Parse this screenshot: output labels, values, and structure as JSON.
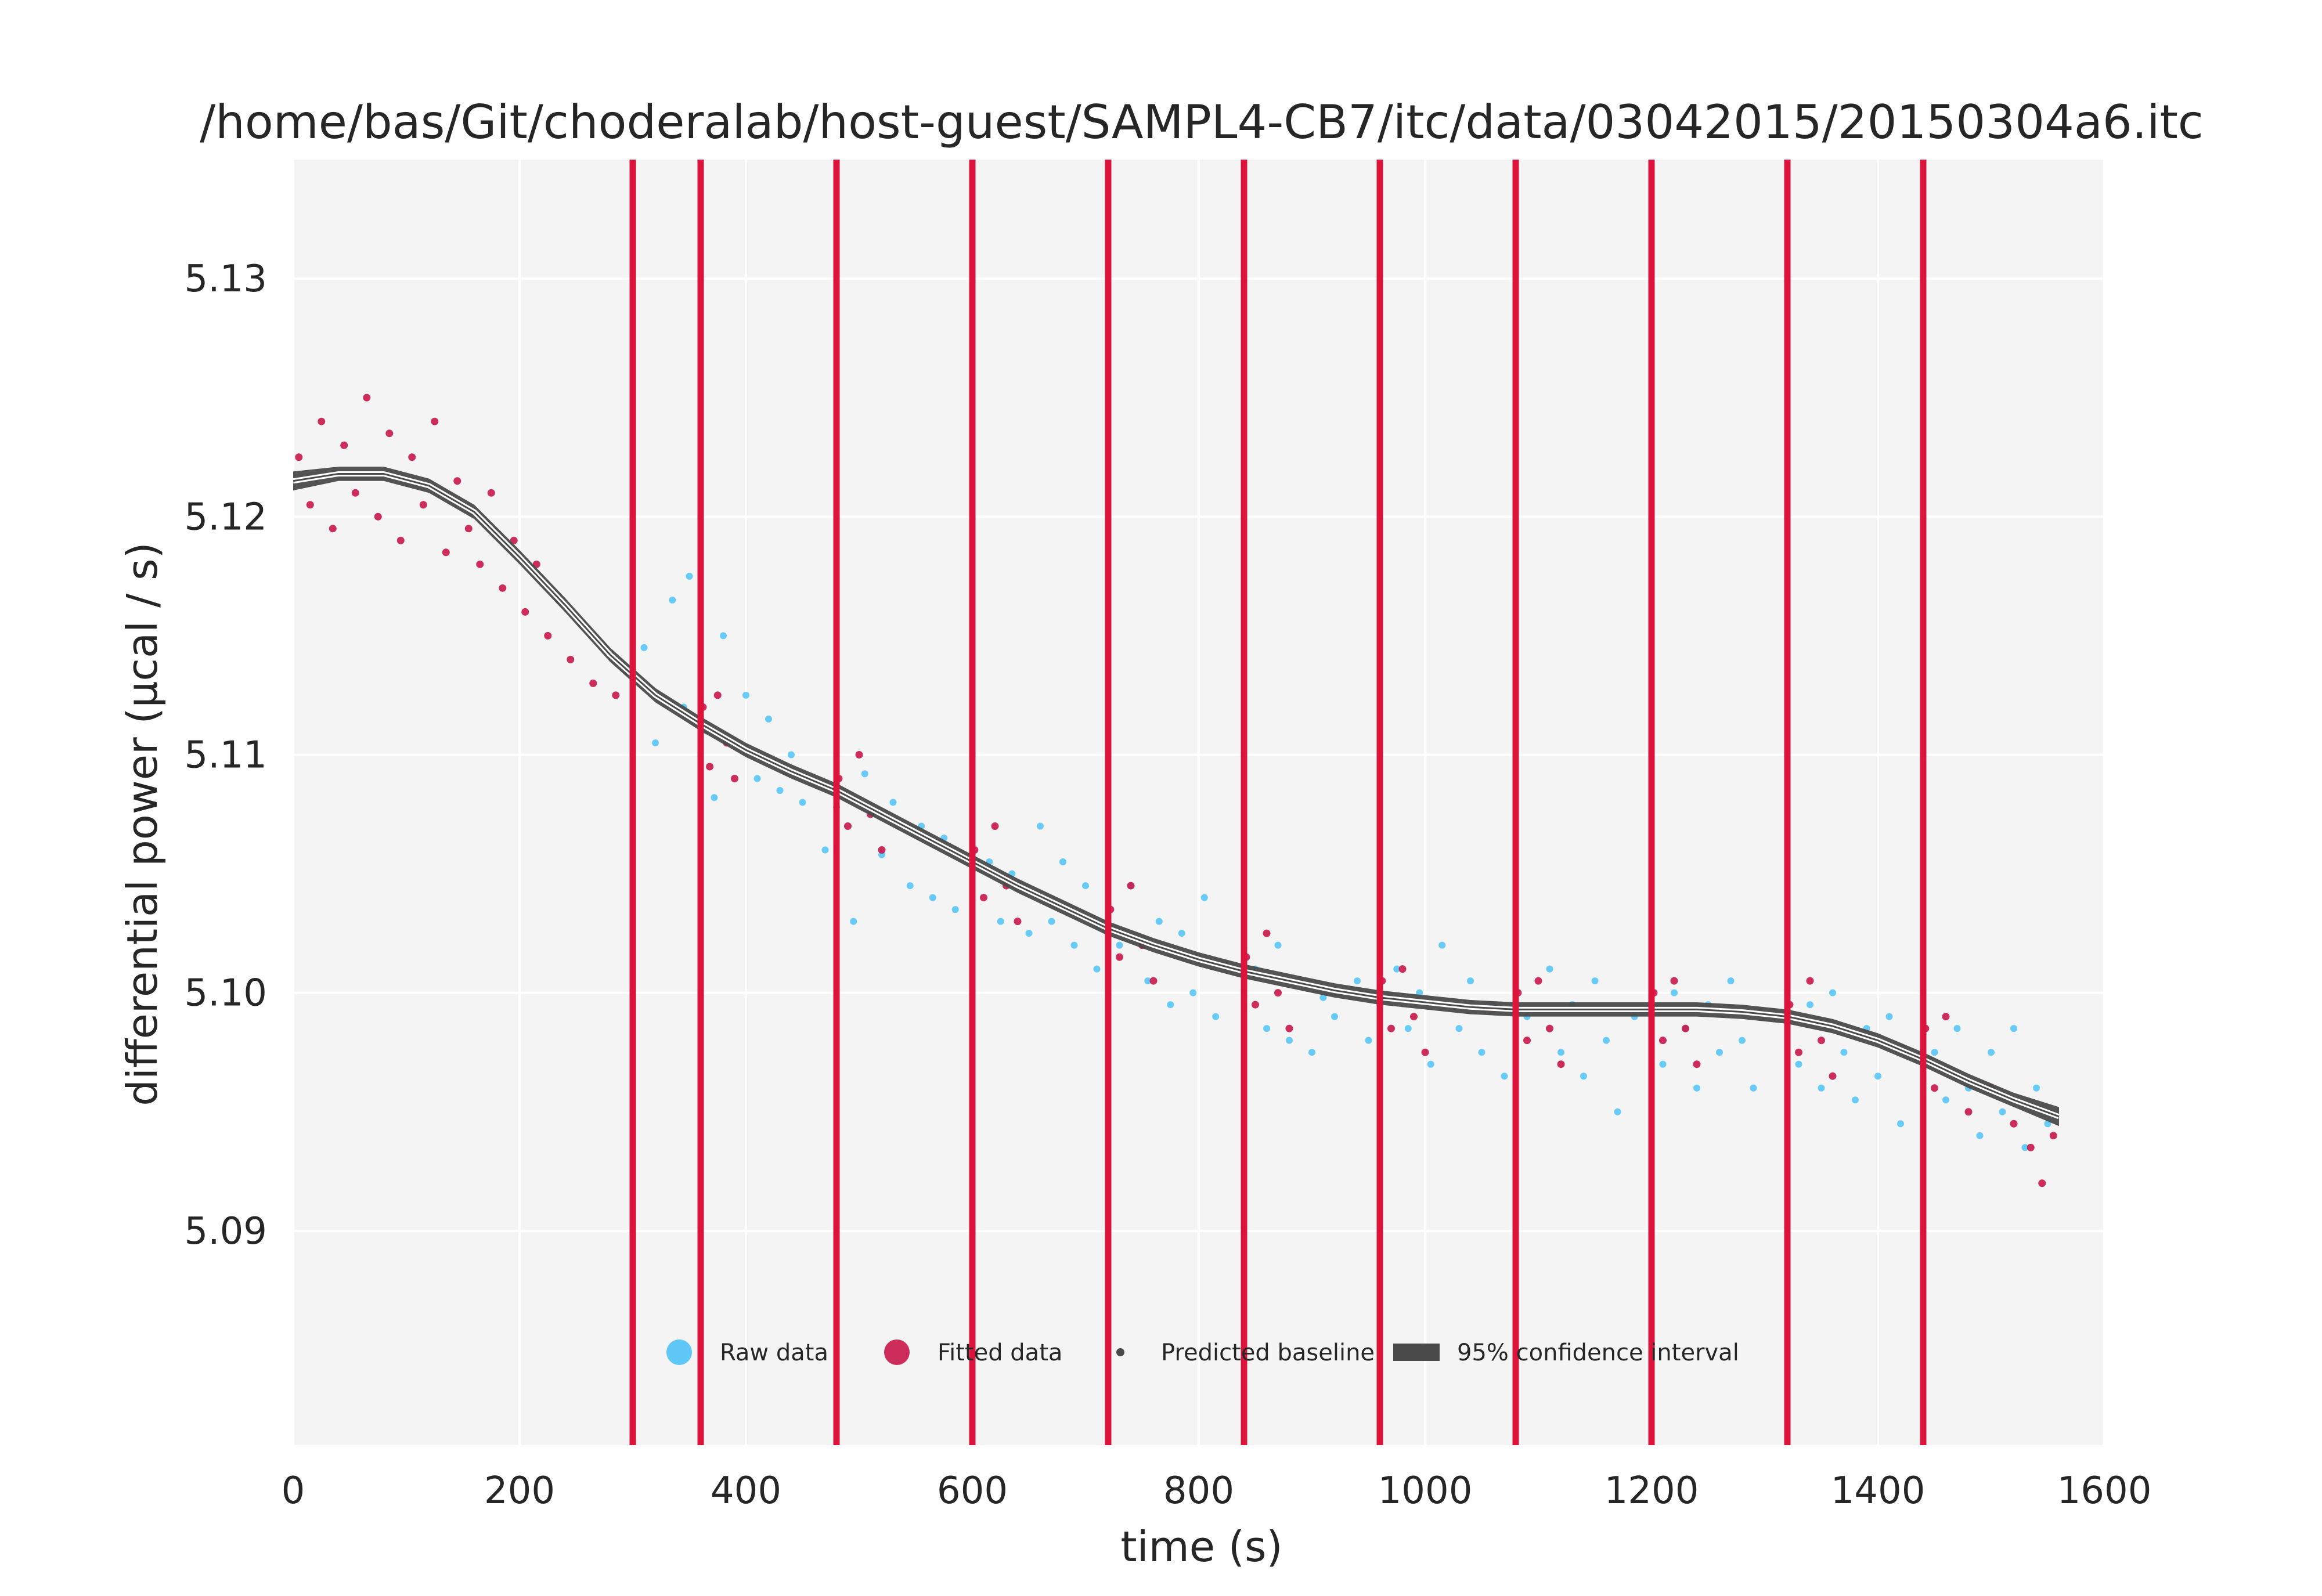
{
  "chart_data": {
    "type": "scatter",
    "title": "/home/bas/Git/choderalab/host-guest/SAMPL4-CB7/itc/data/03042015/20150304a6.itc",
    "xlabel": "time (s)",
    "ylabel": "differential power (µcal / s)",
    "xlim": [
      0,
      1600
    ],
    "ylim": [
      5.081,
      5.135
    ],
    "xticks": [
      0,
      200,
      400,
      600,
      800,
      1000,
      1200,
      1400,
      1600
    ],
    "xtick_labels": [
      "0",
      "200",
      "400",
      "600",
      "800",
      "1000",
      "1200",
      "1400",
      "1600"
    ],
    "yticks": [
      5.09,
      5.1,
      5.11,
      5.12,
      5.13
    ],
    "ytick_labels": [
      "5.09",
      "5.10",
      "5.11",
      "5.12",
      "5.13"
    ],
    "grid": true,
    "legend_placement": "lower-center",
    "colors": {
      "raw": "#4fc3f7",
      "fitted": "#c8174a",
      "baseline": "#4a4a4a",
      "injection": "#dc143c",
      "background": "#f4f4f4",
      "grid": "#ffffff"
    },
    "injection_times": [
      300,
      360,
      480,
      600,
      720,
      840,
      960,
      1080,
      1200,
      1320,
      1440
    ],
    "baseline": {
      "x": [
        0,
        40,
        80,
        120,
        160,
        200,
        240,
        280,
        320,
        360,
        400,
        440,
        480,
        520,
        560,
        600,
        640,
        680,
        720,
        760,
        800,
        840,
        880,
        920,
        960,
        1000,
        1040,
        1080,
        1120,
        1160,
        1200,
        1240,
        1280,
        1320,
        1360,
        1400,
        1440,
        1480,
        1520,
        1560
      ],
      "y": [
        5.1215,
        5.1218,
        5.1218,
        5.1213,
        5.1202,
        5.1183,
        5.1163,
        5.1142,
        5.1125,
        5.1113,
        5.1102,
        5.1093,
        5.1085,
        5.1075,
        5.1065,
        5.1055,
        5.1045,
        5.1036,
        5.1027,
        5.102,
        5.1014,
        5.1009,
        5.1005,
        5.1001,
        5.0998,
        5.0996,
        5.0994,
        5.0993,
        5.0993,
        5.0993,
        5.0993,
        5.0993,
        5.0992,
        5.099,
        5.0986,
        5.098,
        5.0972,
        5.0963,
        5.0955,
        5.0948
      ],
      "ci_halfwidth": [
        0.0004,
        0.0003,
        0.0003,
        0.0003,
        0.0003,
        0.0003,
        0.0003,
        0.0003,
        0.0003,
        0.0003,
        0.0003,
        0.0003,
        0.0003,
        0.0003,
        0.0003,
        0.0003,
        0.0003,
        0.0003,
        0.0003,
        0.0003,
        0.0003,
        0.0003,
        0.0003,
        0.0003,
        0.0003,
        0.0003,
        0.0003,
        0.0003,
        0.0003,
        0.0003,
        0.0003,
        0.0003,
        0.0003,
        0.0003,
        0.0003,
        0.0003,
        0.0003,
        0.0003,
        0.0003,
        0.0004
      ]
    },
    "series": [
      {
        "name": "Raw data",
        "x": [
          310,
          320,
          335,
          345,
          350,
          365,
          372,
          380,
          390,
          400,
          410,
          420,
          430,
          440,
          450,
          470,
          480,
          495,
          505,
          520,
          530,
          545,
          555,
          565,
          575,
          585,
          615,
          625,
          635,
          650,
          660,
          670,
          680,
          690,
          700,
          710,
          730,
          740,
          755,
          765,
          775,
          785,
          795,
          805,
          815,
          850,
          860,
          870,
          880,
          890,
          900,
          910,
          920,
          940,
          950,
          960,
          975,
          985,
          995,
          1005,
          1015,
          1030,
          1040,
          1050,
          1060,
          1070,
          1090,
          1110,
          1120,
          1130,
          1140,
          1150,
          1160,
          1170,
          1185,
          1210,
          1220,
          1230,
          1240,
          1250,
          1260,
          1270,
          1280,
          1290,
          1300,
          1330,
          1340,
          1350,
          1360,
          1370,
          1380,
          1390,
          1400,
          1410,
          1420,
          1450,
          1460,
          1470,
          1480,
          1490,
          1500,
          1510,
          1520,
          1530,
          1540,
          1550
        ],
        "y": [
          5.1145,
          5.1105,
          5.1165,
          5.112,
          5.1175,
          5.111,
          5.1082,
          5.115,
          5.1105,
          5.1125,
          5.109,
          5.1115,
          5.1085,
          5.11,
          5.108,
          5.106,
          5.1078,
          5.103,
          5.1092,
          5.1058,
          5.108,
          5.1045,
          5.107,
          5.104,
          5.1065,
          5.1035,
          5.1055,
          5.103,
          5.105,
          5.1025,
          5.107,
          5.103,
          5.1055,
          5.102,
          5.1045,
          5.101,
          5.102,
          5.1045,
          5.1005,
          5.103,
          5.0995,
          5.1025,
          5.1,
          5.104,
          5.099,
          5.101,
          5.0985,
          5.102,
          5.098,
          5.1005,
          5.0975,
          5.0998,
          5.099,
          5.1005,
          5.098,
          5.0995,
          5.101,
          5.0985,
          5.1,
          5.097,
          5.102,
          5.0985,
          5.1005,
          5.0975,
          5.0995,
          5.0965,
          5.099,
          5.101,
          5.0975,
          5.0995,
          5.0965,
          5.1005,
          5.098,
          5.095,
          5.099,
          5.097,
          5.1,
          5.0985,
          5.096,
          5.0995,
          5.0975,
          5.1005,
          5.098,
          5.096,
          5.099,
          5.097,
          5.0995,
          5.096,
          5.1,
          5.0975,
          5.0955,
          5.0985,
          5.0965,
          5.099,
          5.0945,
          5.0975,
          5.0955,
          5.0985,
          5.096,
          5.094,
          5.0975,
          5.095,
          5.0985,
          5.0935,
          5.096,
          5.0945
        ]
      },
      {
        "name": "Fitted data",
        "x": [
          5,
          15,
          25,
          35,
          45,
          55,
          65,
          75,
          85,
          95,
          105,
          115,
          125,
          135,
          145,
          155,
          165,
          175,
          185,
          195,
          205,
          215,
          225,
          235,
          245,
          255,
          265,
          275,
          285,
          295,
          362,
          368,
          375,
          383,
          390,
          482,
          490,
          500,
          510,
          520,
          602,
          610,
          620,
          630,
          640,
          722,
          730,
          740,
          750,
          760,
          842,
          850,
          860,
          870,
          880,
          962,
          970,
          980,
          990,
          1000,
          1082,
          1090,
          1100,
          1110,
          1120,
          1202,
          1210,
          1220,
          1230,
          1240,
          1322,
          1330,
          1340,
          1350,
          1360,
          1442,
          1450,
          1460,
          1470,
          1480,
          1500,
          1520,
          1535,
          1545,
          1555
        ],
        "y": [
          5.1225,
          5.1205,
          5.124,
          5.1195,
          5.123,
          5.121,
          5.125,
          5.12,
          5.1235,
          5.119,
          5.1225,
          5.1205,
          5.124,
          5.1185,
          5.1215,
          5.1195,
          5.118,
          5.121,
          5.117,
          5.119,
          5.116,
          5.118,
          5.115,
          5.1165,
          5.114,
          5.1155,
          5.113,
          5.1145,
          5.1125,
          5.1135,
          5.112,
          5.1095,
          5.1125,
          5.1105,
          5.109,
          5.109,
          5.107,
          5.11,
          5.1075,
          5.106,
          5.106,
          5.104,
          5.107,
          5.1045,
          5.103,
          5.1035,
          5.1015,
          5.1045,
          5.102,
          5.1005,
          5.1015,
          5.0995,
          5.1025,
          5.1,
          5.0985,
          5.1005,
          5.0985,
          5.101,
          5.099,
          5.0975,
          5.1,
          5.098,
          5.1005,
          5.0985,
          5.097,
          5.1,
          5.098,
          5.1005,
          5.0985,
          5.097,
          5.0995,
          5.0975,
          5.1005,
          5.098,
          5.0965,
          5.0985,
          5.096,
          5.099,
          5.0965,
          5.095,
          5.096,
          5.0945,
          5.0935,
          5.092,
          5.094
        ]
      },
      {
        "name": "Predicted baseline",
        "x": [],
        "y": []
      }
    ],
    "legend": [
      {
        "label": "Raw data",
        "kind": "dot",
        "color": "#4fc3f7"
      },
      {
        "label": "Fitted data",
        "kind": "dot",
        "color": "#c8174a"
      },
      {
        "label": "Predicted baseline",
        "kind": "small-dot",
        "color": "#4a4a4a"
      },
      {
        "label": "95% confidence interval",
        "kind": "band",
        "color": "#4a4a4a"
      }
    ]
  }
}
